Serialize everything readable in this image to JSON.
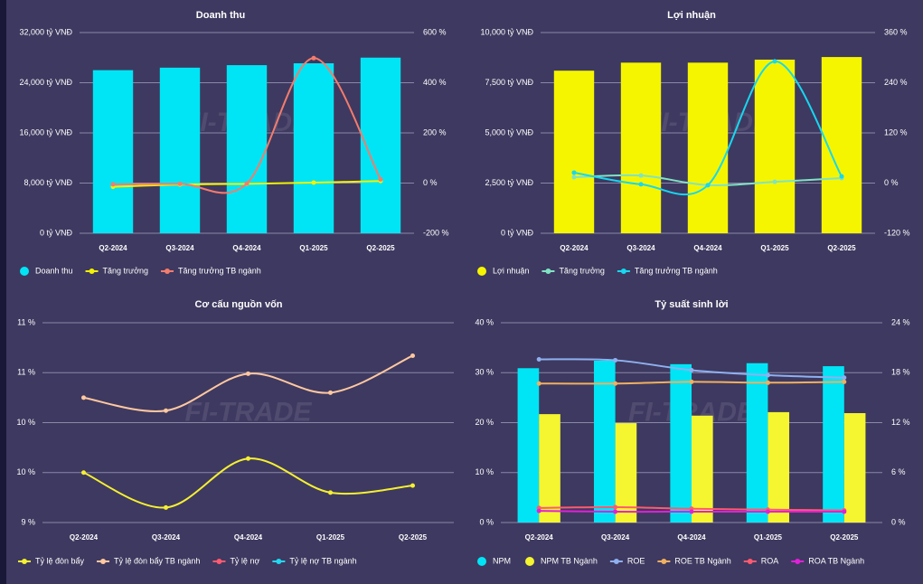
{
  "chart_data": [
    {
      "type": "bar",
      "title": "Doanh thu",
      "watermark": "FI-TRADE",
      "categories": [
        "Q2-2024",
        "Q3-2024",
        "Q4-2024",
        "Q1-2025",
        "Q2-2025"
      ],
      "series": [
        {
          "name": "Doanh thu",
          "type": "bar",
          "color": "#00e5f5",
          "values": [
            26000,
            26400,
            26800,
            27100,
            28000
          ]
        },
        {
          "name": "Tăng trưởng",
          "type": "line",
          "axis": "y2",
          "color": "#f2f200",
          "values": [
            -15,
            -6,
            -3,
            2,
            8
          ]
        },
        {
          "name": "Tăng trưởng TB ngành",
          "type": "line",
          "axis": "y2",
          "color": "#f47c6c",
          "values": [
            -5,
            -3,
            -2,
            498,
            15
          ]
        }
      ],
      "ylim": [
        0,
        32000
      ],
      "yticks": [
        {
          "value": 0,
          "label": "0 tỷ VNĐ"
        },
        {
          "value": 8000,
          "label": "8,000 tỷ VNĐ"
        },
        {
          "value": 16000,
          "label": "16,000 tỷ VNĐ"
        },
        {
          "value": 24000,
          "label": "24,000 tỷ VNĐ"
        },
        {
          "value": 32000,
          "label": "32,000 tỷ VNĐ"
        }
      ],
      "y2lim": [
        -200,
        600
      ],
      "y2ticks": [
        {
          "value": -200,
          "label": "-200 %"
        },
        {
          "value": 0,
          "label": "0 %"
        },
        {
          "value": 200,
          "label": "200 %"
        },
        {
          "value": 400,
          "label": "400 %"
        },
        {
          "value": 600,
          "label": "600 %"
        }
      ],
      "grid": true
    },
    {
      "type": "bar",
      "title": "Lợi nhuận",
      "watermark": "FI-TRADE",
      "categories": [
        "Q2-2024",
        "Q3-2024",
        "Q4-2024",
        "Q1-2025",
        "Q2-2025"
      ],
      "series": [
        {
          "name": "Lợi nhuận",
          "type": "bar",
          "color": "#f5f500",
          "values": [
            8100,
            8500,
            8500,
            8650,
            8780
          ]
        },
        {
          "name": "Tăng trưởng",
          "type": "line",
          "axis": "y2",
          "color": "#7fe3c4",
          "values": [
            14,
            18,
            -5,
            3,
            12
          ]
        },
        {
          "name": "Tăng trưởng TB ngành",
          "type": "line",
          "axis": "y2",
          "color": "#16d8f0",
          "values": [
            25,
            -3,
            -5,
            291,
            16
          ]
        }
      ],
      "ylim": [
        0,
        10000
      ],
      "yticks": [
        {
          "value": 0,
          "label": "0 tỷ VNĐ"
        },
        {
          "value": 2500,
          "label": "2,500 tỷ VNĐ"
        },
        {
          "value": 5000,
          "label": "5,000 tỷ VNĐ"
        },
        {
          "value": 7500,
          "label": "7,500 tỷ VNĐ"
        },
        {
          "value": 10000,
          "label": "10,000 tỷ VNĐ"
        }
      ],
      "y2lim": [
        -120,
        360
      ],
      "y2ticks": [
        {
          "value": -120,
          "label": "-120 %"
        },
        {
          "value": 0,
          "label": "0 %"
        },
        {
          "value": 120,
          "label": "120 %"
        },
        {
          "value": 240,
          "label": "240 %"
        },
        {
          "value": 360,
          "label": "360 %"
        }
      ],
      "grid": true
    },
    {
      "type": "line",
      "title": "Cơ cấu nguồn vốn",
      "watermark": "FI-TRADE",
      "categories": [
        "Q2-2024",
        "Q3-2024",
        "Q4-2024",
        "Q1-2025",
        "Q2-2025"
      ],
      "series": [
        {
          "name": "Tỷ lệ đòn bẩy",
          "type": "line",
          "color": "#f5f030",
          "values": [
            9.5,
            9.15,
            9.64,
            9.3,
            9.37
          ]
        },
        {
          "name": "Tỷ lệ đòn bẩy TB ngành",
          "type": "line",
          "color": "#ffc8a0",
          "values": [
            10.25,
            10.12,
            10.49,
            10.3,
            10.67
          ]
        },
        {
          "name": "Tỷ lệ nợ",
          "type": "line",
          "color": "#ff5a70",
          "values": [
            null,
            null,
            null,
            null,
            null
          ]
        },
        {
          "name": "Tỷ lệ nợ TB ngành",
          "type": "line",
          "color": "#20d8f0",
          "values": [
            null,
            null,
            null,
            null,
            null
          ]
        }
      ],
      "ylim": [
        9,
        11
      ],
      "yticks": [
        {
          "value": 9,
          "label": "9 %"
        },
        {
          "value": 9.5,
          "label": "10 %"
        },
        {
          "value": 10,
          "label": "10 %"
        },
        {
          "value": 10.5,
          "label": "11 %"
        },
        {
          "value": 11,
          "label": "11 %"
        }
      ],
      "grid": true
    },
    {
      "type": "bar",
      "title": "Tỷ suất sinh lời",
      "watermark": "FI-TRADE",
      "categories": [
        "Q2-2024",
        "Q3-2024",
        "Q4-2024",
        "Q1-2025",
        "Q2-2025"
      ],
      "series": [
        {
          "name": "NPM",
          "type": "bar",
          "color": "#00e5f5",
          "values": [
            30.9,
            32.4,
            31.7,
            31.9,
            31.3
          ]
        },
        {
          "name": "NPM TB Ngành",
          "type": "bar",
          "color": "#f5f530",
          "values": [
            21.7,
            19.9,
            21.4,
            22.1,
            21.9
          ]
        },
        {
          "name": "ROE",
          "type": "line",
          "axis": "y2",
          "color": "#8fb0f0",
          "values": [
            19.6,
            19.5,
            18.3,
            17.7,
            17.4
          ]
        },
        {
          "name": "ROE TB Ngành",
          "type": "line",
          "axis": "y2",
          "color": "#f0b060",
          "values": [
            16.7,
            16.7,
            16.9,
            16.8,
            16.9
          ]
        },
        {
          "name": "ROA",
          "type": "line",
          "axis": "y2",
          "color": "#ff5a70",
          "values": [
            1.75,
            1.85,
            1.65,
            1.55,
            1.45
          ]
        },
        {
          "name": "ROA TB Ngành",
          "type": "line",
          "axis": "y2",
          "color": "#e020d8",
          "values": [
            1.4,
            1.3,
            1.3,
            1.3,
            1.3
          ]
        }
      ],
      "ylim": [
        0,
        40
      ],
      "yticks": [
        {
          "value": 0,
          "label": "0 %"
        },
        {
          "value": 10,
          "label": "10 %"
        },
        {
          "value": 20,
          "label": "20 %"
        },
        {
          "value": 30,
          "label": "30 %"
        },
        {
          "value": 40,
          "label": "40 %"
        }
      ],
      "y2lim": [
        0,
        24
      ],
      "y2ticks": [
        {
          "value": 0,
          "label": "0 %"
        },
        {
          "value": 6,
          "label": "6 %"
        },
        {
          "value": 12,
          "label": "12 %"
        },
        {
          "value": 18,
          "label": "18 %"
        },
        {
          "value": 24,
          "label": "24 %"
        }
      ],
      "grid": true
    }
  ]
}
